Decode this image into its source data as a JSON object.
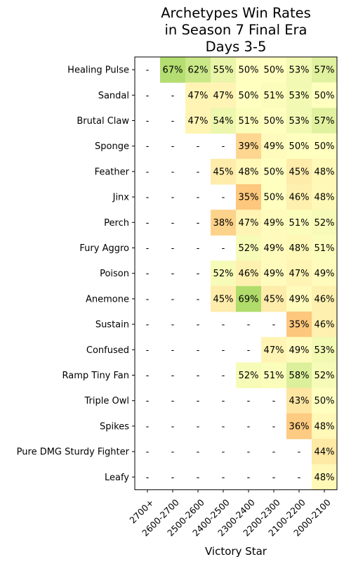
{
  "chart_data": {
    "type": "heatmap",
    "title": [
      "Archetypes Win Rates",
      "in Season 7 Final Era",
      "Days 3-5"
    ],
    "xlabel": "Victory Star",
    "x": [
      "2700+",
      "2600-2700",
      "2500-2600",
      "2400-2500",
      "2300-2400",
      "2200-2300",
      "2100-2200",
      "2000-2100"
    ],
    "y": [
      "Healing Pulse",
      "Sandal",
      "Brutal Claw",
      "Sponge",
      "Feather",
      "Jinx",
      "Perch",
      "Fury Aggro",
      "Poison",
      "Anemone",
      "Sustain",
      "Confused",
      "Ramp Tiny Fan",
      "Triple Owl",
      "Spikes",
      "Pure DMG Sturdy Fighter",
      "Leafy"
    ],
    "values": [
      [
        null,
        67,
        62,
        55,
        50,
        50,
        53,
        57
      ],
      [
        null,
        null,
        47,
        47,
        50,
        51,
        53,
        50
      ],
      [
        null,
        null,
        47,
        54,
        51,
        50,
        53,
        57
      ],
      [
        null,
        null,
        null,
        null,
        39,
        49,
        50,
        50
      ],
      [
        null,
        null,
        null,
        45,
        48,
        50,
        45,
        48
      ],
      [
        null,
        null,
        null,
        null,
        35,
        50,
        46,
        48
      ],
      [
        null,
        null,
        null,
        38,
        47,
        49,
        51,
        52
      ],
      [
        null,
        null,
        null,
        null,
        52,
        49,
        48,
        51
      ],
      [
        null,
        null,
        null,
        52,
        46,
        49,
        47,
        49
      ],
      [
        null,
        null,
        null,
        45,
        69,
        45,
        49,
        46
      ],
      [
        null,
        null,
        null,
        null,
        null,
        null,
        35,
        46
      ],
      [
        null,
        null,
        null,
        null,
        null,
        47,
        49,
        53
      ],
      [
        null,
        null,
        null,
        null,
        52,
        51,
        58,
        52
      ],
      [
        null,
        null,
        null,
        null,
        null,
        null,
        43,
        50
      ],
      [
        null,
        null,
        null,
        null,
        null,
        null,
        36,
        48
      ],
      [
        null,
        null,
        null,
        null,
        null,
        null,
        null,
        44
      ],
      [
        null,
        null,
        null,
        null,
        null,
        null,
        null,
        48
      ]
    ],
    "missing_label": "-",
    "value_suffix": "%",
    "colormap": "RdYlGn",
    "colors": {
      "low": "#fdc77d",
      "mid": "#ffffc0",
      "high": "#b0dc6c"
    }
  }
}
